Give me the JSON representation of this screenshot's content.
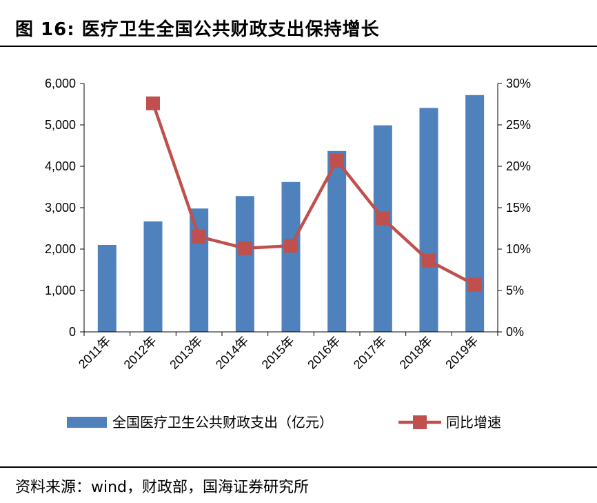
{
  "header": {
    "title": "图 16:  医疗卫生全国公共财政支出保持增长"
  },
  "footer": {
    "source": "资料来源：wind，财政部，国海证券研究所"
  },
  "colors": {
    "bar": "#4F81BD",
    "line": "#C0504D"
  },
  "chart_data": {
    "type": "bar",
    "title": "",
    "categories": [
      "2011年",
      "2012年",
      "2013年",
      "2014年",
      "2015年",
      "2016年",
      "2017年",
      "2018年",
      "2019年"
    ],
    "series": [
      {
        "name": "全国医疗卫生公共财政支出（亿元）",
        "type": "bar",
        "axis": "left",
        "values": [
          2100,
          2670,
          2980,
          3280,
          3620,
          4370,
          4990,
          5410,
          5720
        ]
      },
      {
        "name": "同比增速",
        "type": "line",
        "axis": "right",
        "values": [
          null,
          27.6,
          11.5,
          10.1,
          10.4,
          20.7,
          13.7,
          8.6,
          5.7
        ]
      }
    ],
    "y_left": {
      "min": 0,
      "max": 6000,
      "ticks": [
        "0",
        "1,000",
        "2,000",
        "3,000",
        "4,000",
        "5,000",
        "6,000"
      ]
    },
    "y_right": {
      "min": 0,
      "max": 30,
      "ticks": [
        "0%",
        "5%",
        "10%",
        "15%",
        "20%",
        "25%",
        "30%"
      ]
    },
    "grid": false,
    "legend": "bottom"
  }
}
